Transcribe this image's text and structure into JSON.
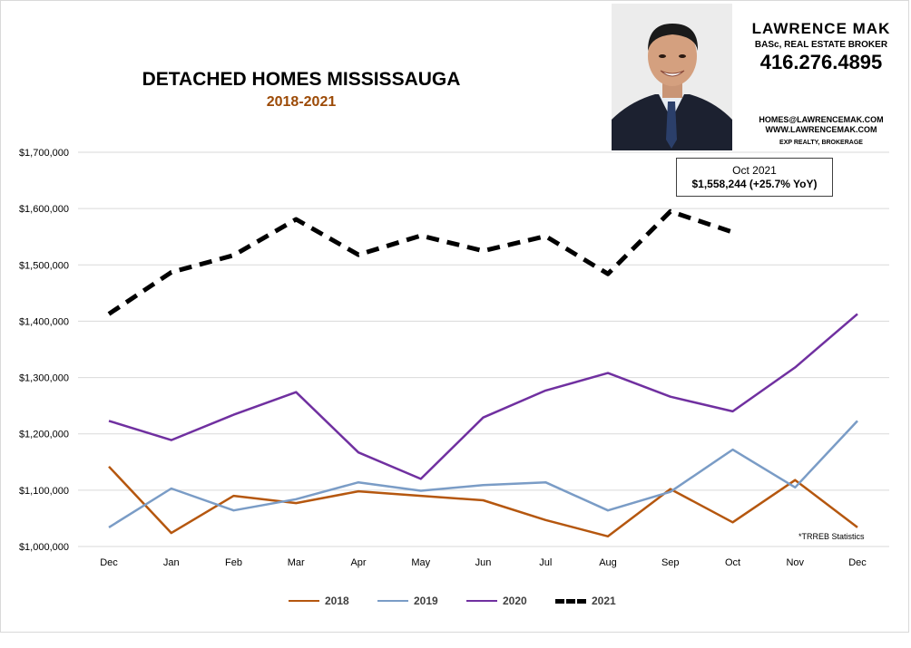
{
  "branding": {
    "name": "LAWRENCE MAK",
    "role": "BASc, REAL ESTATE BROKER",
    "phone": "416.276.4895",
    "email": "HOMES@LAWRENCEMAK.COM",
    "website": "WWW.LAWRENCEMAK.COM",
    "brokerage": "EXP REALTY, BROKERAGE"
  },
  "callout": {
    "label": "Oct 2021",
    "value": "$1,558,244  (+25.7%  YoY)"
  },
  "source_note": "*TRREB Statistics",
  "colors": {
    "s2018": "#b5570f",
    "s2019": "#7a9cc6",
    "s2020": "#7030a0",
    "s2021": "#000000",
    "grid": "#d9d9d9",
    "subtitle": "#9c4a06"
  },
  "chart_data": {
    "type": "line",
    "title": "DETACHED HOMES MISSISSAUGA",
    "subtitle": "2018-2021",
    "xlabel": "",
    "ylabel": "",
    "categories": [
      "Dec",
      "Jan",
      "Feb",
      "Mar",
      "Apr",
      "May",
      "Jun",
      "Jul",
      "Aug",
      "Sep",
      "Oct",
      "Nov",
      "Dec"
    ],
    "ylim": [
      1000000,
      1700000
    ],
    "yticks": [
      1000000,
      1100000,
      1200000,
      1300000,
      1400000,
      1500000,
      1600000,
      1700000
    ],
    "ytick_labels": [
      "$1,000,000",
      "$1,100,000",
      "$1,200,000",
      "$1,300,000",
      "$1,400,000",
      "$1,500,000",
      "$1,600,000",
      "$1,700,000"
    ],
    "grid": true,
    "legend_position": "bottom",
    "series": [
      {
        "name": "2018",
        "values": [
          1142000,
          1024000,
          1090000,
          1077000,
          1098000,
          1090000,
          1082000,
          1047000,
          1018000,
          1102000,
          1043000,
          1118000,
          1034000
        ]
      },
      {
        "name": "2019",
        "values": [
          1034000,
          1103000,
          1064000,
          1084000,
          1114000,
          1099000,
          1109000,
          1114000,
          1064000,
          1097000,
          1172000,
          1105000,
          1223000
        ]
      },
      {
        "name": "2020",
        "values": [
          1223000,
          1189000,
          1234000,
          1274000,
          1167000,
          1120000,
          1229000,
          1277000,
          1308000,
          1266000,
          1240000,
          1318000,
          1413000
        ]
      },
      {
        "name": "2021",
        "values": [
          1413000,
          1487000,
          1517000,
          1581000,
          1518000,
          1552000,
          1525000,
          1551000,
          1484000,
          1595000,
          1558244,
          null,
          null
        ]
      }
    ]
  }
}
